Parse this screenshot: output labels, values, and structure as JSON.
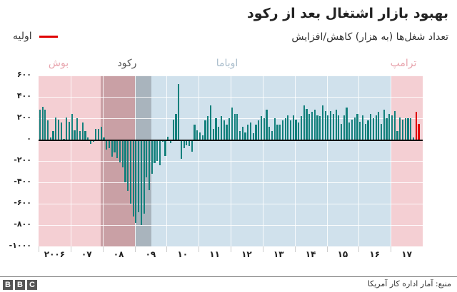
{
  "header": {
    "title": "بهبود بازار اشتغال بعد از رکود",
    "subtitle": "تعداد شغل‌ها (به هزار) کاهش/افزایش"
  },
  "legend": {
    "label": "اولیه",
    "color": "#e00000"
  },
  "regions": [
    {
      "label": "بوش",
      "color": "#f4cfd3",
      "label_color": "#e8a4ad"
    },
    {
      "label": "رکود",
      "color_bush": "#c9a0a5",
      "color_obama": "#a9b4bd",
      "label_color": "#555555"
    },
    {
      "label": "اوباما",
      "color": "#d0e1ec",
      "label_color": "#a8bccb"
    },
    {
      "label": "ترامپ",
      "color": "#f4cfd3",
      "label_color": "#e8a4ad"
    }
  ],
  "footer": {
    "source": "منبع: آمار اداره کار آمریکا",
    "logo": [
      "B",
      "B",
      "C"
    ]
  },
  "chart_data": {
    "type": "bar",
    "title": "بهبود بازار اشتغال بعد از رکود",
    "ylabel": "تعداد شغل‌ها (به هزار) کاهش/افزایش",
    "xlabel": "",
    "ylim": [
      -1000,
      600
    ],
    "yticks": [
      "۶۰۰",
      "۴۰۰",
      "۲۰۰",
      "۰",
      "-۲۰۰",
      "-۴۰۰",
      "-۶۰۰",
      "-۸۰۰",
      "-۱۰۰۰"
    ],
    "ytick_values": [
      600,
      400,
      200,
      0,
      -200,
      -400,
      -600,
      -800,
      -1000
    ],
    "xticks": [
      "۲۰۰۶",
      "۰۷",
      "۰۸",
      "۰۹",
      "۱۰",
      "۱۱",
      "۱۲",
      "۱۳",
      "۱۴",
      "۱۵",
      "۱۶",
      "۱۷"
    ],
    "grid": true,
    "legend": [
      {
        "name": "اولیه",
        "color": "#e00000"
      }
    ],
    "series": [
      {
        "name": "monthly_job_change",
        "color": "#13807c",
        "start": "2006-01",
        "values": [
          280,
          310,
          280,
          180,
          20,
          80,
          210,
          190,
          160,
          5,
          210,
          170,
          240,
          90,
          200,
          80,
          160,
          80,
          20,
          -40,
          -20,
          100,
          100,
          120,
          20,
          -90,
          -80,
          -160,
          -120,
          -170,
          -210,
          -260,
          -400,
          -480,
          -600,
          -720,
          -780,
          -680,
          -800,
          -690,
          -350,
          -470,
          -320,
          -220,
          -200,
          -240,
          -20,
          -150,
          30,
          -30,
          190,
          240,
          520,
          -180,
          -80,
          -50,
          -60,
          -110,
          140,
          90,
          70,
          40,
          180,
          220,
          320,
          100,
          200,
          120,
          220,
          180,
          140,
          200,
          300,
          240,
          240,
          80,
          120,
          70,
          140,
          160,
          60,
          140,
          180,
          220,
          200,
          280,
          120,
          80,
          200,
          140,
          140,
          180,
          200,
          230,
          180,
          230,
          190,
          160,
          220,
          320,
          290,
          240,
          260,
          280,
          230,
          220,
          320,
          270,
          230,
          270,
          240,
          280,
          230,
          150,
          230,
          300,
          160,
          190,
          210,
          240,
          170,
          230,
          150,
          180,
          240,
          200,
          230,
          260,
          150,
          280,
          200,
          240,
          230,
          270,
          80,
          210,
          190,
          200,
          200,
          200,
          20,
          260,
          150
        ]
      }
    ],
    "regions": [
      {
        "name": "بوش",
        "start": "2006-01",
        "end": "2007-11"
      },
      {
        "name": "رکود",
        "start": "2007-12",
        "end": "2009-06"
      },
      {
        "name": "اوباما",
        "start": "2009-01",
        "end": "2017-01"
      },
      {
        "name": "ترامپ",
        "start": "2017-01",
        "end": "2017-11"
      }
    ],
    "preliminary_points": 2
  }
}
